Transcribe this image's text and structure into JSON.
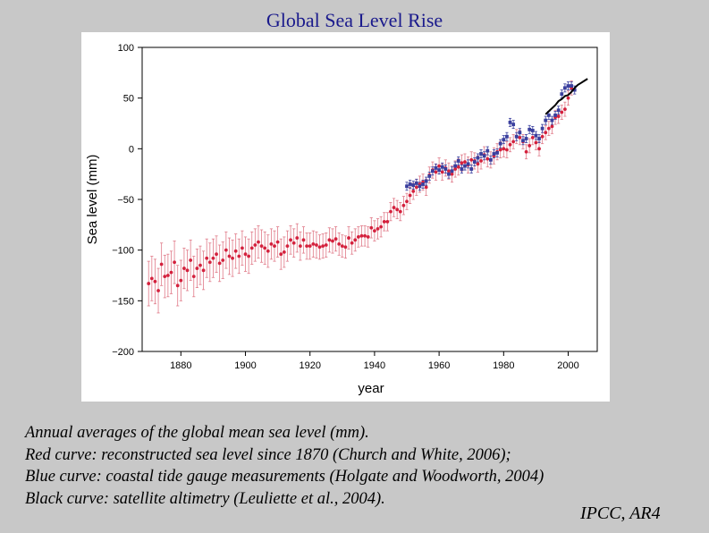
{
  "slide": {
    "title": "Global Sea Level Rise",
    "caption_lines": [
      "Annual averages of the global mean sea level (mm).",
      "Red curve: reconstructed sea level since 1870 (Church and White, 2006);",
      "Blue curve: coastal tide gauge measurements (Holgate and Woodworth, 2004)",
      "Black curve: satellite altimetry (Leuliette et al., 2004)."
    ],
    "credit": "IPCC, AR4"
  },
  "chart_data": {
    "type": "line",
    "title": "",
    "xlabel": "year",
    "ylabel": "Sea level (mm)",
    "xlim": [
      1868,
      2009
    ],
    "ylim": [
      -200,
      100
    ],
    "x_ticks": [
      1880,
      1900,
      1920,
      1940,
      1960,
      1980,
      2000
    ],
    "y_ticks": [
      100,
      50,
      0,
      -50,
      -100,
      -150,
      -200
    ],
    "grid": false,
    "legend": "none",
    "colors": {
      "red": "#d4213d",
      "red_error": "#e07a88",
      "blue": "#3a3f9e",
      "black": "#000000"
    },
    "series": [
      {
        "color": "red",
        "error_bars": true,
        "x": [
          1870,
          1871,
          1872,
          1873,
          1874,
          1875,
          1876,
          1877,
          1878,
          1879,
          1880,
          1881,
          1882,
          1883,
          1884,
          1885,
          1886,
          1887,
          1888,
          1889,
          1890,
          1891,
          1892,
          1893,
          1894,
          1895,
          1896,
          1897,
          1898,
          1899,
          1900,
          1901,
          1902,
          1903,
          1904,
          1905,
          1906,
          1907,
          1908,
          1909,
          1910,
          1911,
          1912,
          1913,
          1914,
          1915,
          1916,
          1917,
          1918,
          1919,
          1920,
          1921,
          1922,
          1923,
          1924,
          1925,
          1926,
          1927,
          1928,
          1929,
          1930,
          1931,
          1932,
          1933,
          1934,
          1935,
          1936,
          1937,
          1938,
          1939,
          1940,
          1941,
          1942,
          1943,
          1944,
          1945,
          1946,
          1947,
          1948,
          1949,
          1950,
          1951,
          1952,
          1953,
          1954,
          1955,
          1956,
          1957,
          1958,
          1959,
          1960,
          1961,
          1962,
          1963,
          1964,
          1965,
          1966,
          1967,
          1968,
          1969,
          1970,
          1971,
          1972,
          1973,
          1974,
          1975,
          1976,
          1977,
          1978,
          1979,
          1980,
          1981,
          1982,
          1983,
          1984,
          1985,
          1986,
          1987,
          1988,
          1989,
          1990,
          1991,
          1992,
          1993,
          1994,
          1995,
          1996,
          1997,
          1998,
          1999,
          2000,
          2001
        ],
        "y": [
          -133,
          -128,
          -131,
          -140,
          -114,
          -126,
          -125,
          -122,
          -112,
          -135,
          -130,
          -118,
          -120,
          -110,
          -126,
          -118,
          -115,
          -120,
          -108,
          -112,
          -108,
          -104,
          -113,
          -110,
          -100,
          -106,
          -108,
          -101,
          -106,
          -98,
          -104,
          -106,
          -98,
          -95,
          -92,
          -96,
          -98,
          -101,
          -94,
          -96,
          -92,
          -104,
          -102,
          -96,
          -90,
          -93,
          -88,
          -96,
          -90,
          -96,
          -96,
          -94,
          -95,
          -97,
          -96,
          -95,
          -90,
          -91,
          -89,
          -94,
          -96,
          -97,
          -88,
          -93,
          -90,
          -87,
          -86,
          -86,
          -87,
          -78,
          -81,
          -79,
          -77,
          -72,
          -72,
          -62,
          -58,
          -60,
          -62,
          -56,
          -52,
          -46,
          -42,
          -38,
          -35,
          -33,
          -38,
          -26,
          -21,
          -23,
          -17,
          -23,
          -19,
          -22,
          -25,
          -20,
          -18,
          -14,
          -13,
          -16,
          -11,
          -12,
          -15,
          -12,
          -6,
          -10,
          -11,
          -7,
          -3,
          -1,
          0,
          -1,
          4,
          7,
          12,
          11,
          7,
          -3,
          3,
          11,
          6,
          0,
          12,
          16,
          20,
          22,
          31,
          32,
          36,
          39,
          50,
          60
        ],
        "y_err": [
          22,
          22,
          22,
          22,
          21,
          21,
          21,
          21,
          21,
          20,
          20,
          20,
          20,
          20,
          20,
          19,
          19,
          19,
          19,
          19,
          19,
          18,
          18,
          18,
          18,
          18,
          18,
          17,
          17,
          17,
          17,
          17,
          16,
          16,
          16,
          16,
          16,
          16,
          15,
          15,
          15,
          15,
          15,
          15,
          14,
          14,
          14,
          14,
          13,
          13,
          13,
          13,
          13,
          12,
          12,
          12,
          12,
          12,
          12,
          11,
          11,
          11,
          11,
          11,
          11,
          10,
          10,
          10,
          10,
          10,
          10,
          10,
          10,
          9,
          9,
          9,
          9,
          9,
          9,
          9,
          8,
          8,
          8,
          8,
          8,
          8,
          8,
          8,
          8,
          8,
          8,
          8,
          8,
          8,
          8,
          8,
          8,
          8,
          8,
          8,
          8,
          8,
          8,
          8,
          8,
          8,
          8,
          8,
          8,
          8,
          8,
          8,
          7,
          7,
          7,
          7,
          7,
          7,
          7,
          7,
          7,
          7,
          7,
          7,
          7,
          7,
          7,
          7,
          7,
          7,
          7,
          7
        ]
      },
      {
        "color": "blue",
        "error_bars": true,
        "x": [
          1950,
          1951,
          1952,
          1953,
          1954,
          1955,
          1956,
          1957,
          1958,
          1959,
          1960,
          1961,
          1962,
          1963,
          1964,
          1965,
          1966,
          1967,
          1968,
          1969,
          1970,
          1971,
          1972,
          1973,
          1974,
          1975,
          1976,
          1977,
          1978,
          1979,
          1980,
          1981,
          1982,
          1983,
          1984,
          1985,
          1986,
          1987,
          1988,
          1989,
          1990,
          1991,
          1992,
          1993,
          1994,
          1995,
          1996,
          1997,
          1998,
          1999,
          2000,
          2001,
          2002
        ],
        "y": [
          -37,
          -35,
          -36,
          -34,
          -37,
          -35,
          -32,
          -27,
          -22,
          -19,
          -21,
          -18,
          -20,
          -25,
          -22,
          -17,
          -12,
          -20,
          -17,
          -15,
          -20,
          -13,
          -9,
          -5,
          -7,
          -2,
          -11,
          -5,
          -4,
          5,
          9,
          12,
          26,
          24,
          12,
          16,
          8,
          10,
          19,
          18,
          13,
          10,
          20,
          28,
          33,
          28,
          33,
          38,
          54,
          60,
          62,
          62,
          58
        ],
        "y_err": [
          4,
          4,
          4,
          4,
          4,
          4,
          4,
          4,
          4,
          4,
          4,
          4,
          4,
          4,
          4,
          4,
          4,
          4,
          4,
          4,
          4,
          4,
          4,
          4,
          4,
          4,
          4,
          4,
          4,
          4,
          4,
          4,
          4,
          4,
          4,
          4,
          4,
          4,
          4,
          4,
          4,
          4,
          4,
          4,
          4,
          4,
          4,
          4,
          4,
          4,
          4,
          4,
          4
        ]
      },
      {
        "color": "black",
        "error_bars": false,
        "x": [
          1993,
          1994,
          1995,
          1996,
          1997,
          1998,
          1999,
          2000,
          2001,
          2002,
          2003,
          2004,
          2005,
          2006
        ],
        "y": [
          34,
          37,
          40,
          43,
          47,
          49,
          52,
          53,
          56,
          60,
          63,
          65,
          67,
          69
        ]
      }
    ]
  }
}
